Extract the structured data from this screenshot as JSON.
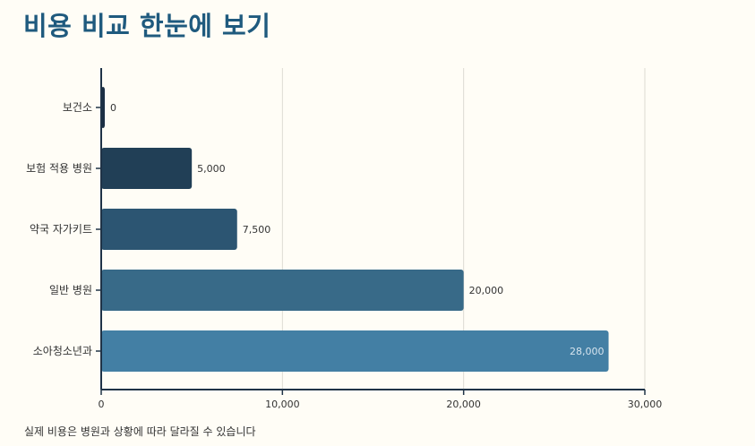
{
  "header": {
    "title": "비용 비교 한눈에 보기"
  },
  "footer": {
    "note": "실제 비용은 병원과 상황에 따라 달라질 수 있습니다"
  },
  "colors": {
    "axis": "#1f3347",
    "grid": "#dddad2",
    "bar_label": "#333333",
    "bar_label_inside": "#d6e4ee",
    "bars": [
      "#1b2f44",
      "#213f56",
      "#2c5572",
      "#386a88",
      "#437fa4"
    ]
  },
  "chart_data": {
    "type": "bar",
    "orientation": "horizontal",
    "categories": [
      "보건소",
      "보험 적용 병원",
      "약국 자가키트",
      "일반 병원",
      "소아청소년과"
    ],
    "values": [
      0,
      5000,
      7500,
      20000,
      28000
    ],
    "value_labels": [
      "0",
      "5,000",
      "7,500",
      "20,000",
      "28,000"
    ],
    "xlim": [
      0,
      30000
    ],
    "x_ticks": [
      0,
      10000,
      20000,
      30000
    ],
    "x_tick_labels": [
      "0",
      "10,000",
      "20,000",
      "30,000"
    ],
    "grid": true,
    "title": "비용 비교 한눈에 보기",
    "xlabel": "",
    "ylabel": ""
  }
}
